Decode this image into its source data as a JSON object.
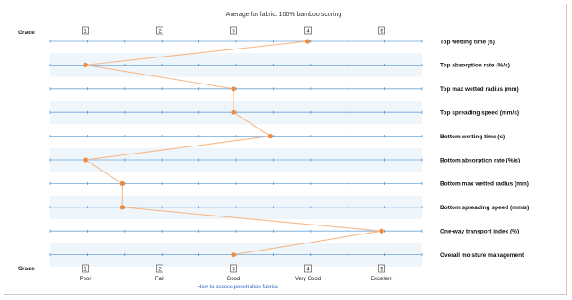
{
  "chart_data": {
    "type": "line",
    "title": "Average for fabric: 100% bamboo scoring",
    "grade_label": "Grade",
    "grades": [
      "1",
      "2",
      "3",
      "4",
      "5"
    ],
    "ratings": [
      "Poor",
      "Fair",
      "Good",
      "Very Good",
      "Excellent"
    ],
    "xlim": [
      1,
      5
    ],
    "series": [
      {
        "parameters": [
          "Top wetting time (s)",
          "Top absorption rate (%/s)",
          "Top max wetted radius (mm)",
          "Top spreading speed (mm/s)",
          "Bottom wetting time (s)",
          "Bottom absorption rate (%/s)",
          "Bottom max wetted radius (mm)",
          "Bottom spreading speed (mm/s)",
          "One-way transport index (%)",
          "Overall moisture management"
        ],
        "values": [
          4.0,
          1.0,
          3.0,
          3.0,
          3.5,
          1.0,
          1.5,
          1.5,
          5.0,
          3.0
        ]
      }
    ],
    "colors": {
      "line": "#f5b98a",
      "marker": "#f08a3c",
      "gridline": "#6fa8dc",
      "band": "#eef5fb"
    },
    "link_label": "How to assess penetration fabrics"
  }
}
